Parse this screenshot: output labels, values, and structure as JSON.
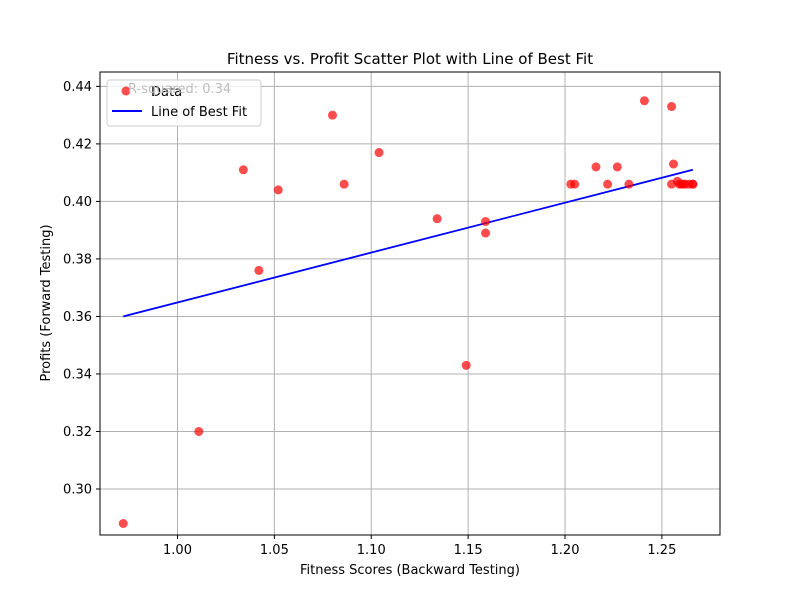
{
  "chart_data": {
    "type": "scatter",
    "title": "Fitness vs. Profit Scatter Plot with Line of Best Fit",
    "xlabel": "Fitness Scores (Backward Testing)",
    "ylabel": "Profits (Forward Testing)",
    "xlim": [
      0.96,
      1.28
    ],
    "ylim": [
      0.284,
      0.445
    ],
    "xticks": [
      1.0,
      1.05,
      1.1,
      1.15,
      1.2,
      1.25
    ],
    "xtick_labels": [
      "1.00",
      "1.05",
      "1.10",
      "1.15",
      "1.20",
      "1.25"
    ],
    "yticks": [
      0.3,
      0.32,
      0.34,
      0.36,
      0.38,
      0.4,
      0.42,
      0.44
    ],
    "ytick_labels": [
      "0.30",
      "0.32",
      "0.34",
      "0.36",
      "0.38",
      "0.40",
      "0.42",
      "0.44"
    ],
    "grid": true,
    "legend_position": "top-left",
    "annotation": "R-squared: 0.34",
    "series": [
      {
        "name": "Data",
        "kind": "scatter",
        "color": "#ff0000",
        "points": [
          {
            "x": 0.972,
            "y": 0.288
          },
          {
            "x": 1.011,
            "y": 0.32
          },
          {
            "x": 1.034,
            "y": 0.411
          },
          {
            "x": 1.042,
            "y": 0.376
          },
          {
            "x": 1.052,
            "y": 0.404
          },
          {
            "x": 1.08,
            "y": 0.43
          },
          {
            "x": 1.086,
            "y": 0.406
          },
          {
            "x": 1.104,
            "y": 0.417
          },
          {
            "x": 1.134,
            "y": 0.394
          },
          {
            "x": 1.149,
            "y": 0.343
          },
          {
            "x": 1.159,
            "y": 0.393
          },
          {
            "x": 1.159,
            "y": 0.389
          },
          {
            "x": 1.203,
            "y": 0.406
          },
          {
            "x": 1.205,
            "y": 0.406
          },
          {
            "x": 1.216,
            "y": 0.412
          },
          {
            "x": 1.222,
            "y": 0.406
          },
          {
            "x": 1.227,
            "y": 0.412
          },
          {
            "x": 1.233,
            "y": 0.406
          },
          {
            "x": 1.241,
            "y": 0.435
          },
          {
            "x": 1.255,
            "y": 0.433
          },
          {
            "x": 1.255,
            "y": 0.406
          },
          {
            "x": 1.256,
            "y": 0.413
          },
          {
            "x": 1.258,
            "y": 0.407
          },
          {
            "x": 1.259,
            "y": 0.406
          },
          {
            "x": 1.26,
            "y": 0.406
          },
          {
            "x": 1.261,
            "y": 0.406
          },
          {
            "x": 1.262,
            "y": 0.406
          },
          {
            "x": 1.264,
            "y": 0.406
          },
          {
            "x": 1.266,
            "y": 0.406
          },
          {
            "x": 1.266,
            "y": 0.406
          }
        ]
      },
      {
        "name": "Line of Best Fit",
        "kind": "line",
        "color": "#0000ff",
        "x": [
          0.972,
          1.266
        ],
        "y": [
          0.36,
          0.411
        ]
      }
    ]
  }
}
